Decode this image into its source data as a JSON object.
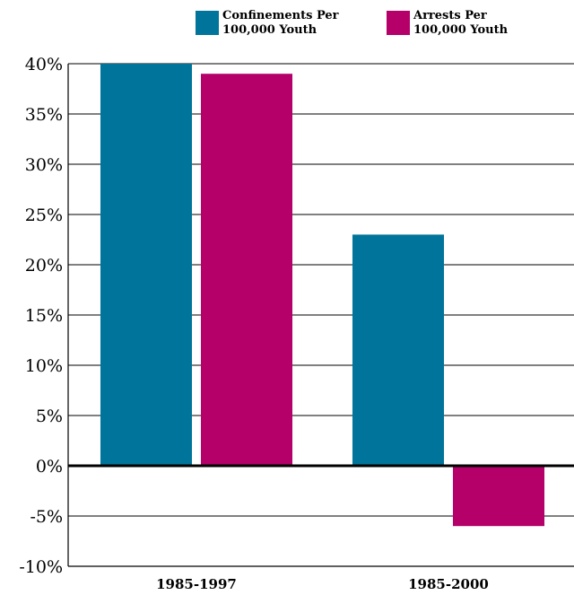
{
  "chart_data": {
    "type": "bar",
    "categories": [
      "1985-1997",
      "1985-2000"
    ],
    "series": [
      {
        "name": "Confinements Per 100,000 Youth",
        "name_lines": [
          "Confinements Per",
          "100,000 Youth"
        ],
        "color": "#00749a",
        "values": [
          40,
          23
        ]
      },
      {
        "name": "Arrests Per 100,000 Youth",
        "name_lines": [
          "Arrests Per",
          "100,000 Youth"
        ],
        "color": "#b5006a",
        "values": [
          39,
          -6
        ]
      }
    ],
    "ylim": [
      -10,
      40
    ],
    "yticks": [
      40,
      35,
      30,
      25,
      20,
      15,
      10,
      5,
      0,
      -5,
      -10
    ],
    "ytick_labels": [
      "40%",
      "35%",
      "30%",
      "25%",
      "20%",
      "15%",
      "10%",
      "5%",
      "0%",
      "-5%",
      "-10%"
    ],
    "grid": true,
    "legend_position": "top"
  }
}
